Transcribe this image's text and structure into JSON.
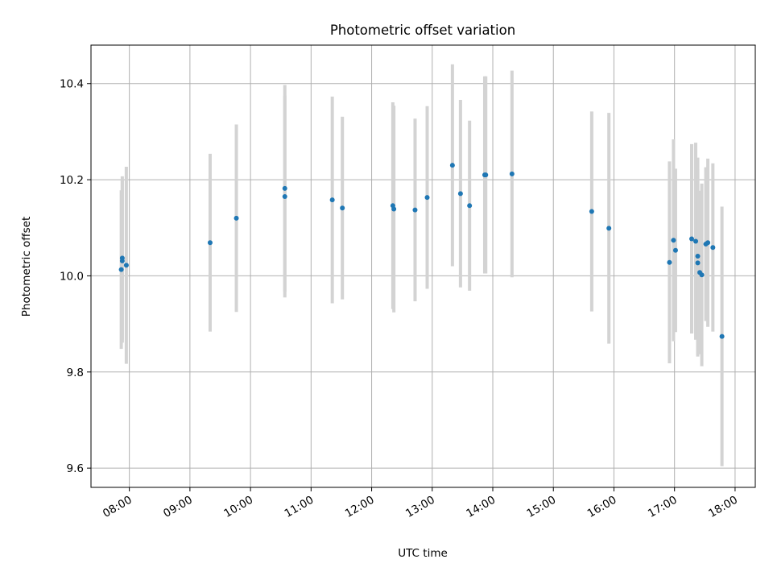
{
  "chart_data": {
    "type": "scatter",
    "title": "Photometric offset variation",
    "xlabel": "UTC time",
    "ylabel": "Photometric offset",
    "xlim": [
      "07:22",
      "18:20"
    ],
    "ylim": [
      9.56,
      10.48
    ],
    "grid": true,
    "x_ticks": [
      "08:00",
      "09:00",
      "10:00",
      "11:00",
      "12:00",
      "13:00",
      "14:00",
      "15:00",
      "16:00",
      "17:00",
      "18:00"
    ],
    "y_ticks": [
      "9.6",
      "9.8",
      "10.0",
      "10.2",
      "10.4"
    ],
    "series": [
      {
        "marker_color": "#1f77b4",
        "errorbar_color": "#d3d3d3",
        "points": [
          {
            "x": "07:52",
            "y": 10.013,
            "yerr": 0.165
          },
          {
            "x": "07:53",
            "y": 10.031,
            "yerr": 0.17
          },
          {
            "x": "07:53",
            "y": 10.037,
            "yerr": 0.17
          },
          {
            "x": "07:57",
            "y": 10.022,
            "yerr": 0.205
          },
          {
            "x": "09:20",
            "y": 10.069,
            "yerr": 0.185
          },
          {
            "x": "09:46",
            "y": 10.12,
            "yerr": 0.195
          },
          {
            "x": "10:34",
            "y": 10.165,
            "yerr": 0.21
          },
          {
            "x": "10:34",
            "y": 10.182,
            "yerr": 0.215
          },
          {
            "x": "11:21",
            "y": 10.158,
            "yerr": 0.215
          },
          {
            "x": "11:31",
            "y": 10.141,
            "yerr": 0.19
          },
          {
            "x": "12:21",
            "y": 10.146,
            "yerr": 0.215
          },
          {
            "x": "12:22",
            "y": 10.139,
            "yerr": 0.215
          },
          {
            "x": "12:43",
            "y": 10.137,
            "yerr": 0.19
          },
          {
            "x": "12:55",
            "y": 10.163,
            "yerr": 0.19
          },
          {
            "x": "13:20",
            "y": 10.23,
            "yerr": 0.21
          },
          {
            "x": "13:28",
            "y": 10.171,
            "yerr": 0.195
          },
          {
            "x": "13:37",
            "y": 10.146,
            "yerr": 0.177
          },
          {
            "x": "13:52",
            "y": 10.21,
            "yerr": 0.205
          },
          {
            "x": "13:53",
            "y": 10.21,
            "yerr": 0.205
          },
          {
            "x": "14:19",
            "y": 10.212,
            "yerr": 0.215
          },
          {
            "x": "15:38",
            "y": 10.134,
            "yerr": 0.208
          },
          {
            "x": "15:55",
            "y": 10.099,
            "yerr": 0.24
          },
          {
            "x": "16:55",
            "y": 10.028,
            "yerr": 0.21
          },
          {
            "x": "16:59",
            "y": 10.074,
            "yerr": 0.21
          },
          {
            "x": "17:01",
            "y": 10.053,
            "yerr": 0.17
          },
          {
            "x": "17:17",
            "y": 10.077,
            "yerr": 0.197
          },
          {
            "x": "17:21",
            "y": 10.072,
            "yerr": 0.205
          },
          {
            "x": "17:23",
            "y": 10.027,
            "yerr": 0.195
          },
          {
            "x": "17:23",
            "y": 10.041,
            "yerr": 0.205
          },
          {
            "x": "17:25",
            "y": 10.007,
            "yerr": 0.17
          },
          {
            "x": "17:27",
            "y": 10.002,
            "yerr": 0.19
          },
          {
            "x": "17:31",
            "y": 10.066,
            "yerr": 0.16
          },
          {
            "x": "17:33",
            "y": 10.069,
            "yerr": 0.175
          },
          {
            "x": "17:38",
            "y": 10.059,
            "yerr": 0.175
          },
          {
            "x": "17:47",
            "y": 9.874,
            "yerr": 0.27
          }
        ]
      }
    ]
  }
}
